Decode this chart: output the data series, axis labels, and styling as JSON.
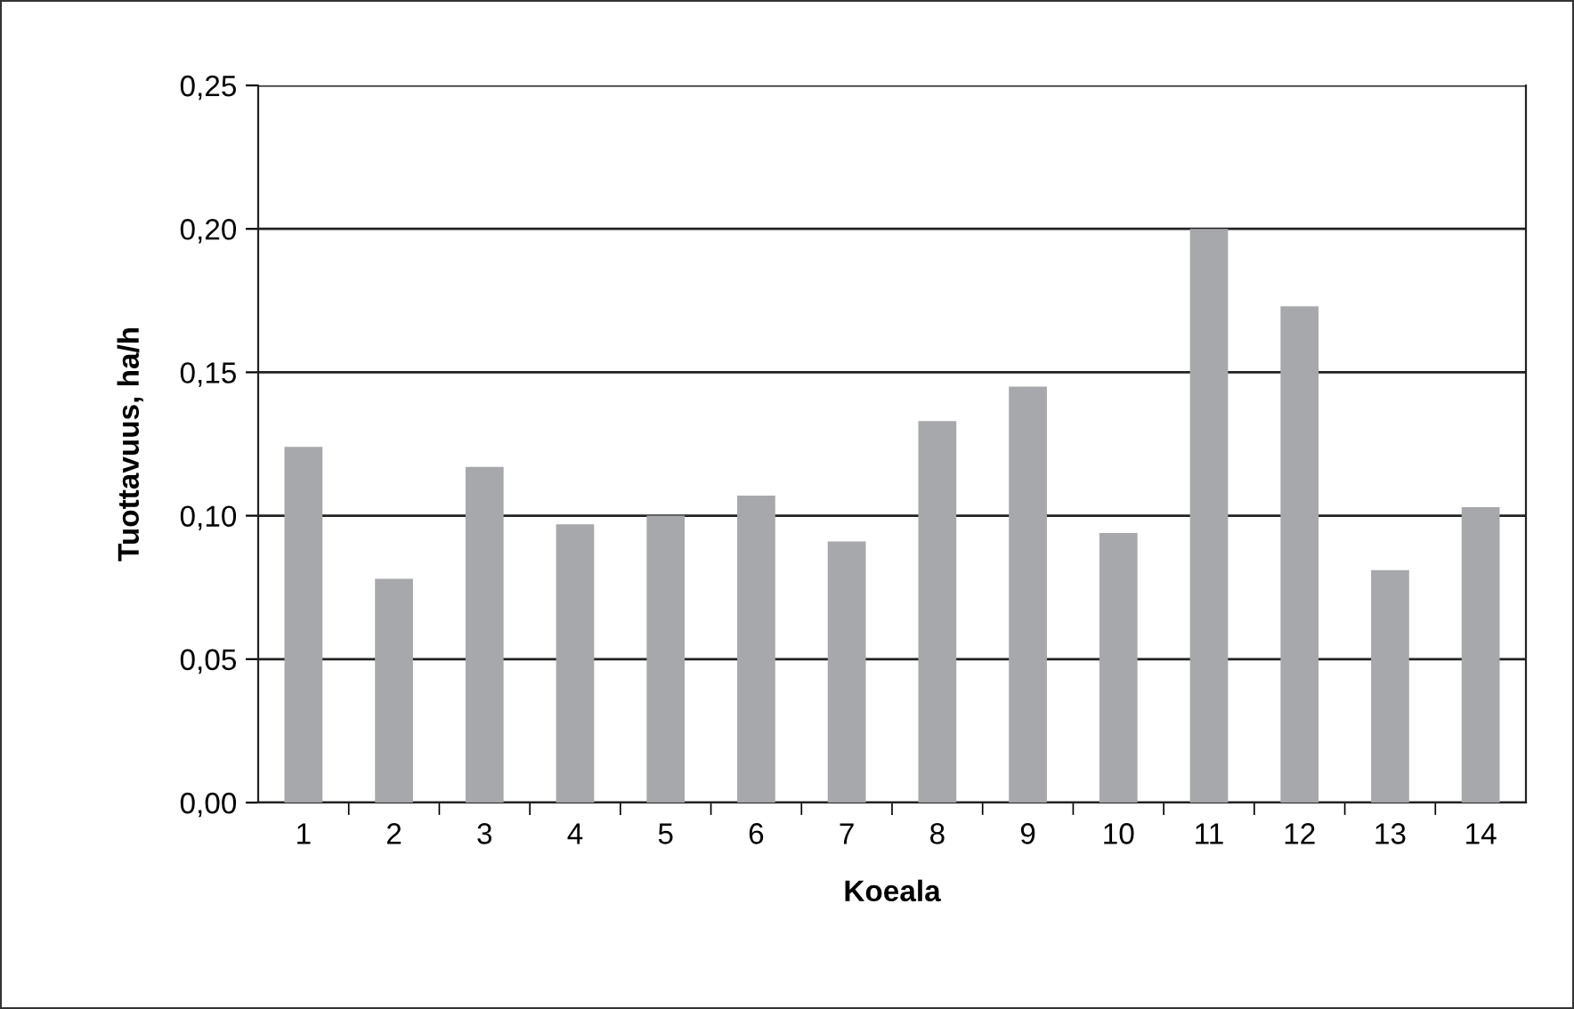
{
  "chart_data": {
    "type": "bar",
    "xlabel": "Koeala",
    "ylabel": "Tuottavuus, ha/h",
    "categories": [
      "1",
      "2",
      "3",
      "4",
      "5",
      "6",
      "7",
      "8",
      "9",
      "10",
      "11",
      "12",
      "13",
      "14"
    ],
    "values": [
      0.124,
      0.078,
      0.117,
      0.097,
      0.1,
      0.107,
      0.091,
      0.133,
      0.145,
      0.094,
      0.2,
      0.173,
      0.081,
      0.103
    ],
    "color": "#a7a8ab",
    "ylim": [
      0,
      0.25
    ],
    "yticks": [
      {
        "value": 0,
        "label": "0,00"
      },
      {
        "value": 0.05,
        "label": "0,05"
      },
      {
        "value": 0.1,
        "label": "0,10"
      },
      {
        "value": 0.15,
        "label": "0,15"
      },
      {
        "value": 0.2,
        "label": "0,20"
      },
      {
        "value": 0.25,
        "label": "0,25"
      }
    ],
    "grid": "y",
    "legend": false
  }
}
